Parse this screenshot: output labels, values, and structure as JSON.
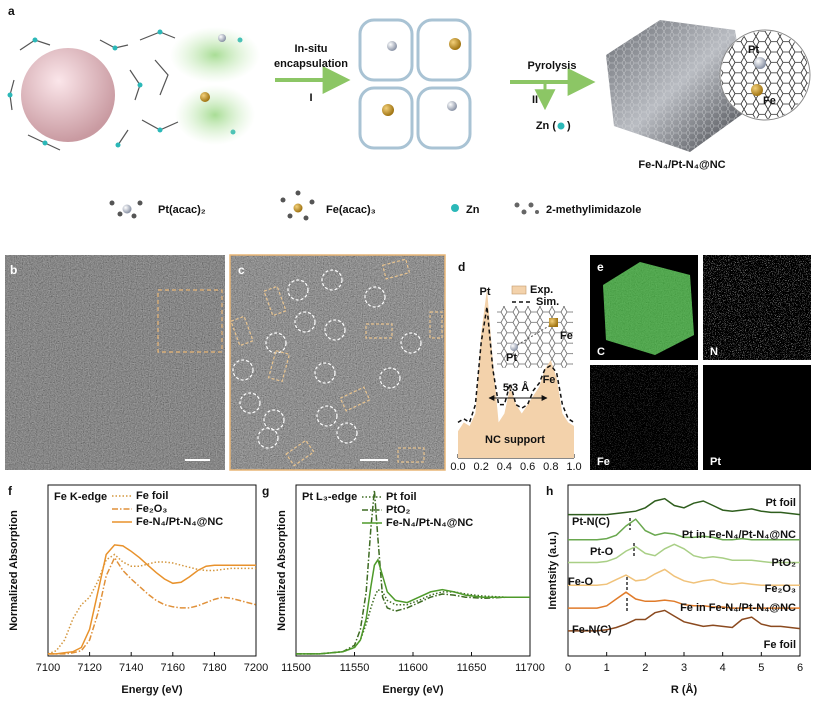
{
  "panel_labels": [
    "a",
    "b",
    "c",
    "d",
    "e",
    "f",
    "g",
    "h"
  ],
  "scheme": {
    "step1": [
      "In-situ",
      "encapsulation"
    ],
    "step1_num": "I",
    "step2": "Pyrolysis",
    "step2_num": "II",
    "byproduct_open": "Zn (",
    "byproduct_close": ")",
    "site_labels": [
      "Pt",
      "Fe"
    ],
    "product": "Fe-N₄/Pt-N₄@NC",
    "legend": [
      "Pt(acac)₂",
      "Fe(acac)₃",
      "Zn",
      "2-methylimidazole"
    ]
  },
  "mapping_labels": [
    "C",
    "N",
    "Fe",
    "Pt"
  ],
  "chart_data": [
    {
      "type": "line",
      "x": [
        0,
        0.05,
        0.1,
        0.15,
        0.2,
        0.25,
        0.3,
        0.35,
        0.4,
        0.45,
        0.5,
        0.55,
        0.6,
        0.65,
        0.7,
        0.75,
        0.8,
        0.85,
        0.9,
        0.95,
        1.0
      ],
      "series": [
        {
          "name": "Exp.",
          "color": "#f3d2ab",
          "fill": true,
          "values": [
            0.15,
            0.2,
            0.18,
            0.25,
            0.7,
            0.95,
            0.55,
            0.2,
            0.25,
            0.4,
            0.3,
            0.25,
            0.3,
            0.35,
            0.4,
            0.5,
            0.55,
            0.45,
            0.25,
            0.2,
            0.18
          ]
        },
        {
          "name": "Sim.",
          "color": "#111111",
          "dash": "dashed",
          "values": [
            0.2,
            0.22,
            0.2,
            0.3,
            0.65,
            0.85,
            0.5,
            0.3,
            0.3,
            0.42,
            0.3,
            0.28,
            0.3,
            0.38,
            0.42,
            0.5,
            0.52,
            0.48,
            0.3,
            0.22,
            0.2
          ]
        }
      ],
      "xlim": [
        0,
        1
      ],
      "ylim": [
        0,
        1
      ],
      "xticks": [
        {
          "value": 0,
          "label": "0.0"
        },
        {
          "value": 0.2,
          "label": "0.2"
        },
        {
          "value": 0.4,
          "label": "0.4"
        },
        {
          "value": 0.6,
          "label": "0.6"
        },
        {
          "value": 0.8,
          "label": "0.8"
        },
        {
          "value": 1,
          "label": "1.0"
        }
      ],
      "annotations": [
        "Pt",
        "Fe",
        "5.3 Å",
        "NC support"
      ],
      "inset_labels": [
        "Pt",
        "Fe"
      ],
      "legend": "upper right"
    },
    {
      "type": "line",
      "title": "Fe K-edge",
      "x": [
        7100,
        7104,
        7108,
        7112,
        7116,
        7120,
        7124,
        7128,
        7132,
        7136,
        7140,
        7144,
        7148,
        7152,
        7156,
        7160,
        7164,
        7168,
        7172,
        7176,
        7180,
        7184,
        7188,
        7192,
        7196,
        7200
      ],
      "series": [
        {
          "name": "Fe foil",
          "color": "#d4973f",
          "dash": "dotted",
          "values": [
            0.02,
            0.05,
            0.15,
            0.35,
            0.48,
            0.55,
            0.7,
            0.9,
            0.95,
            0.88,
            0.84,
            0.84,
            0.86,
            0.88,
            0.88,
            0.87,
            0.85,
            0.83,
            0.81,
            0.8,
            0.8,
            0.81,
            0.82,
            0.82,
            0.82,
            0.82
          ]
        },
        {
          "name": "Fe₂O₃",
          "color": "#e0913a",
          "dash": "dashdot",
          "values": [
            0.02,
            0.02,
            0.02,
            0.03,
            0.05,
            0.15,
            0.4,
            0.75,
            0.92,
            0.8,
            0.72,
            0.65,
            0.58,
            0.52,
            0.48,
            0.46,
            0.45,
            0.45,
            0.47,
            0.5,
            0.53,
            0.55,
            0.54,
            0.52,
            0.5,
            0.48
          ]
        },
        {
          "name": "Fe-N₄/Pt-N₄@NC",
          "color": "#e8922c",
          "values": [
            0.02,
            0.02,
            0.03,
            0.04,
            0.08,
            0.25,
            0.6,
            0.95,
            1.04,
            1.03,
            0.98,
            0.92,
            0.85,
            0.78,
            0.72,
            0.68,
            0.69,
            0.74,
            0.8,
            0.84,
            0.85,
            0.85,
            0.85,
            0.85,
            0.85,
            0.85
          ]
        }
      ],
      "xlim": [
        7100,
        7200
      ],
      "ylim": [
        0,
        1.6
      ],
      "xticks": [
        7100,
        7120,
        7140,
        7160,
        7180,
        7200
      ],
      "xlabel": "Energy (eV)",
      "ylabel": "Normalized Absorption",
      "legend": "upper right"
    },
    {
      "type": "line",
      "title": "Pt L₃-edge",
      "x": [
        11500,
        11520,
        11540,
        11550,
        11555,
        11560,
        11564,
        11567,
        11570,
        11574,
        11578,
        11585,
        11595,
        11605,
        11615,
        11625,
        11635,
        11645,
        11660,
        11680,
        11700
      ],
      "series": [
        {
          "name": "Pt foil",
          "color": "#3d6b22",
          "dash": "dotted",
          "values": [
            0.02,
            0.02,
            0.04,
            0.08,
            0.15,
            0.3,
            0.45,
            0.55,
            0.62,
            0.6,
            0.52,
            0.48,
            0.48,
            0.52,
            0.57,
            0.6,
            0.6,
            0.58,
            0.56,
            0.55,
            0.55
          ]
        },
        {
          "name": "PtO₂",
          "color": "#3d6b22",
          "dash": "dashdot",
          "values": [
            0.02,
            0.02,
            0.04,
            0.1,
            0.25,
            0.6,
            1.2,
            1.55,
            1.1,
            0.55,
            0.45,
            0.42,
            0.45,
            0.5,
            0.55,
            0.58,
            0.57,
            0.55,
            0.54,
            0.55,
            0.55
          ]
        },
        {
          "name": "Fe-N₄/Pt-N₄@NC",
          "color": "#4e9a2a",
          "values": [
            0.02,
            0.02,
            0.04,
            0.08,
            0.15,
            0.35,
            0.65,
            0.85,
            0.9,
            0.75,
            0.6,
            0.52,
            0.5,
            0.55,
            0.6,
            0.62,
            0.6,
            0.57,
            0.55,
            0.55,
            0.55
          ]
        }
      ],
      "xlim": [
        11500,
        11700
      ],
      "ylim": [
        0,
        1.6
      ],
      "xticks": [
        11500,
        11550,
        11600,
        11650,
        11700
      ],
      "xlabel": "Energy (eV)",
      "ylabel": "Normalized Absorption",
      "legend": "upper right"
    },
    {
      "type": "line",
      "x": [
        0,
        0.25,
        0.5,
        0.75,
        1,
        1.25,
        1.5,
        1.75,
        2,
        2.25,
        2.5,
        2.75,
        3,
        3.25,
        3.5,
        3.75,
        4,
        4.25,
        4.5,
        4.75,
        5,
        5.25,
        5.5,
        5.75,
        6
      ],
      "series": [
        {
          "name": "Pt foil",
          "color": "#2f5e1e",
          "values": [
            6.2,
            6.2,
            6.2,
            6.2,
            6.2,
            6.25,
            6.3,
            6.35,
            6.5,
            6.8,
            6.9,
            6.6,
            6.5,
            6.7,
            6.8,
            6.6,
            6.4,
            6.35,
            6.4,
            6.45,
            6.35,
            6.3,
            6.3,
            6.25,
            6.2
          ]
        },
        {
          "name": "Pt in Fe-N₄/Pt-N₄@NC",
          "color": "#6aa84f",
          "values": [
            5.1,
            5.1,
            5.1,
            5.1,
            5.15,
            5.3,
            5.7,
            6.0,
            5.5,
            5.3,
            5.4,
            5.35,
            5.2,
            5.2,
            5.25,
            5.2,
            5.1,
            5.1,
            5.15,
            5.1,
            5.1,
            5.1,
            5.1,
            5.1,
            5.1
          ]
        },
        {
          "name": "PtO₂",
          "color": "#a9cf86",
          "values": [
            4.1,
            4.1,
            4.1,
            4.1,
            4.15,
            4.3,
            4.6,
            4.8,
            4.5,
            4.4,
            4.7,
            4.9,
            4.7,
            4.4,
            4.3,
            4.35,
            4.3,
            4.2,
            4.2,
            4.2,
            4.15,
            4.1,
            4.1,
            4.1,
            4.1
          ]
        },
        {
          "name": "Fe₂O₃",
          "color": "#f0c27a",
          "values": [
            3.1,
            3.1,
            3.1,
            3.1,
            3.15,
            3.35,
            3.55,
            3.3,
            3.35,
            3.6,
            3.8,
            3.5,
            3.3,
            3.2,
            3.3,
            3.35,
            3.2,
            3.15,
            3.2,
            3.15,
            3.1,
            3.1,
            3.1,
            3.1,
            3.1
          ]
        },
        {
          "name": "Fe in Fe-N₄/Pt-N₄@NC",
          "color": "#e07b2a",
          "values": [
            2.1,
            2.1,
            2.1,
            2.1,
            2.2,
            2.5,
            2.8,
            2.5,
            2.4,
            2.4,
            2.45,
            2.4,
            2.25,
            2.2,
            2.2,
            2.15,
            2.15,
            2.1,
            2.1,
            2.1,
            2.1,
            2.1,
            2.1,
            2.1,
            2.1
          ]
        },
        {
          "name": "Fe foil",
          "color": "#8b4a1f",
          "values": [
            1.1,
            1.1,
            1.1,
            1.1,
            1.15,
            1.25,
            1.4,
            1.6,
            1.6,
            1.9,
            2.0,
            1.75,
            1.5,
            1.4,
            1.3,
            1.35,
            1.3,
            1.25,
            1.6,
            1.7,
            1.4,
            1.3,
            1.3,
            1.25,
            1.2
          ]
        }
      ],
      "xlim": [
        0,
        6
      ],
      "ylim": [
        0,
        7.5
      ],
      "xticks": [
        0,
        1,
        2,
        3,
        4,
        5,
        6
      ],
      "xlabel": "R (Å)",
      "ylabel": "Intentsity (a.u.)",
      "annotations": [
        "Pt-N(C)",
        "Pt-O",
        "Fe-O",
        "Fe-N(C)"
      ],
      "legend": "inline"
    }
  ]
}
